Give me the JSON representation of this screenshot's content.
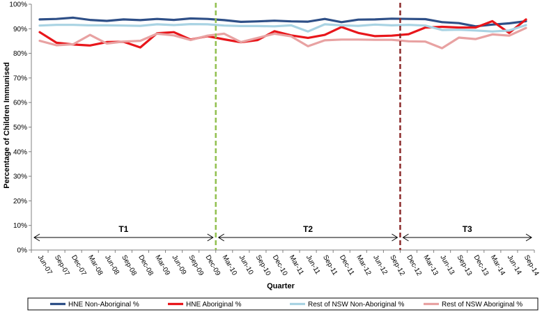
{
  "chart_data": {
    "type": "line",
    "title": "",
    "xlabel": "Quarter",
    "ylabel": "Percentage of Children Immunised",
    "ylim": [
      0,
      100
    ],
    "y_ticks": [
      "0%",
      "10%",
      "20%",
      "30%",
      "40%",
      "50%",
      "60%",
      "70%",
      "80%",
      "90%",
      "100%"
    ],
    "grid": false,
    "legend_position": "bottom",
    "categories": [
      "Jun-07",
      "Sep-07",
      "Dec-07",
      "Mar-08",
      "Jun-08",
      "Sep-08",
      "Dec-08",
      "Mar-09",
      "Jun-09",
      "Sep-09",
      "Dec-09",
      "Mar-10",
      "Jun-10",
      "Sep-10",
      "Dec-10",
      "Mar-11",
      "Jun-11",
      "Sep-11",
      "Dec-11",
      "Mar-12",
      "Jun-12",
      "Sep-12",
      "Dec-12",
      "Mar-13",
      "Jun-13",
      "Sep-13",
      "Dec-13",
      "Mar-14",
      "Jun-14",
      "Sep-14"
    ],
    "series": [
      {
        "name": "HNE Non-Aboriginal %",
        "color": "#2e4f87",
        "values": [
          93.8,
          94.0,
          94.5,
          93.6,
          93.2,
          93.8,
          93.5,
          94.0,
          93.6,
          94.2,
          94.0,
          93.5,
          92.8,
          93.0,
          93.3,
          93.0,
          92.9,
          94.0,
          92.7,
          93.7,
          93.8,
          94.1,
          94.0,
          93.9,
          92.7,
          92.3,
          91.0,
          91.7,
          92.2,
          93.1
        ]
      },
      {
        "name": "HNE Aboriginal %",
        "color": "#e8161b",
        "values": [
          88.6,
          84.3,
          83.6,
          83.2,
          84.6,
          84.7,
          82.4,
          88.2,
          88.6,
          85.6,
          87.0,
          85.7,
          84.5,
          85.4,
          89.0,
          87.3,
          86.3,
          87.5,
          90.7,
          88.3,
          87.0,
          87.2,
          87.8,
          90.5,
          90.8,
          90.5,
          90.5,
          93.1,
          88.3,
          93.8
        ]
      },
      {
        "name": "Rest of NSW Non-Aboriginal %",
        "color": "#a9d3e3",
        "values": [
          91.3,
          91.6,
          91.6,
          91.4,
          91.4,
          91.3,
          91.2,
          91.8,
          91.5,
          91.9,
          91.8,
          91.3,
          91.1,
          91.1,
          91.0,
          91.4,
          88.9,
          91.8,
          91.4,
          91.2,
          91.7,
          91.4,
          91.6,
          91.3,
          89.5,
          89.6,
          89.3,
          88.9,
          89.3,
          91.5
        ]
      },
      {
        "name": "Rest of NSW Aboriginal %",
        "color": "#e8a2a2",
        "values": [
          85.1,
          83.3,
          83.7,
          87.5,
          84.0,
          84.8,
          85.1,
          88.0,
          87.3,
          85.4,
          87.2,
          88.0,
          84.6,
          86.3,
          88.0,
          86.9,
          82.9,
          85.3,
          85.6,
          85.6,
          85.5,
          85.5,
          84.9,
          84.8,
          82.1,
          86.4,
          85.8,
          87.7,
          87.2,
          90.3
        ]
      }
    ],
    "period_dividers": [
      {
        "after_category": "Dec-09",
        "color": "#92c050",
        "style": "dashed"
      },
      {
        "after_category": "Sep-12",
        "color": "#8b2b2b",
        "style": "dashed"
      }
    ],
    "periods": [
      {
        "label": "T1",
        "from": "Jun-07",
        "to": "Dec-09"
      },
      {
        "label": "T2",
        "from": "Mar-10",
        "to": "Sep-12"
      },
      {
        "label": "T3",
        "from": "Dec-12",
        "to": "Sep-14"
      }
    ]
  }
}
